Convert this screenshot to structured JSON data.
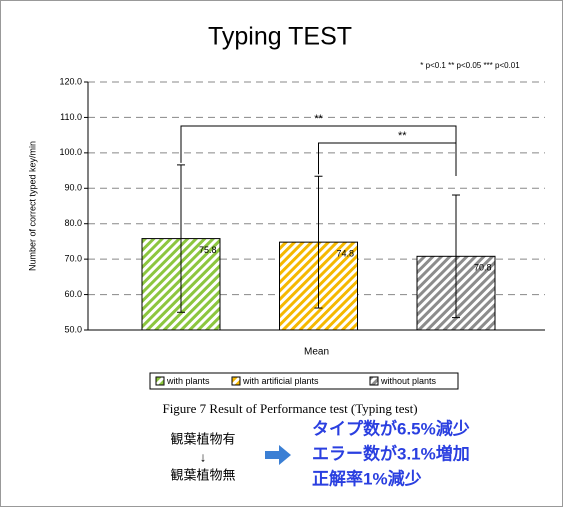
{
  "chart_data": {
    "type": "bar",
    "title": "Typing TEST",
    "significance_note": "* p<0.1  ** p<0.05  *** p<0.01",
    "y_label": "Number of correct typed key/min",
    "categories": [
      "Mean"
    ],
    "series": [
      {
        "name": "with plants",
        "color": "#8cc63f",
        "values": [
          75.8
        ],
        "errors": [
          20.8
        ]
      },
      {
        "name": "with artificial plants",
        "color": "#f5b800",
        "values": [
          74.8
        ],
        "errors": [
          18.6
        ]
      },
      {
        "name": "without plants",
        "color": "#8c8c8c",
        "values": [
          70.8
        ],
        "errors": [
          17.3
        ]
      }
    ],
    "ylim": [
      50,
      120
    ],
    "yticks": [
      {
        "value": 50,
        "label": "50.0"
      },
      {
        "value": 60,
        "label": "60.0"
      },
      {
        "value": 70,
        "label": "70.0"
      },
      {
        "value": 80,
        "label": "80.0"
      },
      {
        "value": 90,
        "label": "90.0"
      },
      {
        "value": 100,
        "label": "100.0"
      },
      {
        "value": 110,
        "label": "110.0"
      },
      {
        "value": 120,
        "label": "120.0"
      }
    ],
    "grid": true,
    "significance": [
      {
        "from": 0,
        "to": 2,
        "label": "**"
      },
      {
        "from": 1,
        "to": 2,
        "label": "**"
      }
    ],
    "caption": "Figure 7  Result of Performance test (Typing test)"
  },
  "notes": {
    "left": [
      "観葉植物有",
      "↓",
      "観葉植物無"
    ],
    "right": [
      "タイプ数が6.5%減少",
      "エラー数が3.1%増加",
      "正解率1%減少"
    ]
  }
}
